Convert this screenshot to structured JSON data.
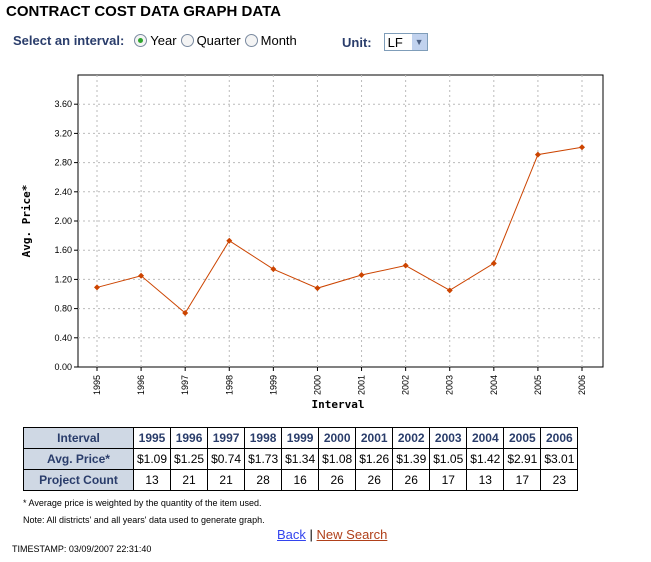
{
  "title": "CONTRACT COST DATA GRAPH DATA",
  "controls": {
    "interval_label": "Select an interval:",
    "options": [
      "Year",
      "Quarter",
      "Month"
    ],
    "selected": "Year",
    "unit_label": "Unit:",
    "unit_value": "LF"
  },
  "chart_data": {
    "type": "line",
    "xlabel": "Interval",
    "ylabel": "Avg. Price*",
    "ylim": [
      0,
      4.0
    ],
    "yticks": [
      "0.00",
      "0.40",
      "0.80",
      "1.20",
      "1.60",
      "2.00",
      "2.40",
      "2.80",
      "3.20",
      "3.60"
    ],
    "categories": [
      "1995",
      "1996",
      "1997",
      "1998",
      "1999",
      "2000",
      "2001",
      "2002",
      "2003",
      "2004",
      "2005",
      "2006"
    ],
    "series": [
      {
        "name": "Avg. Price",
        "values": [
          1.09,
          1.25,
          0.74,
          1.73,
          1.34,
          1.08,
          1.26,
          1.39,
          1.05,
          1.42,
          2.91,
          3.01
        ],
        "color": "#cc4400"
      }
    ],
    "grid": true
  },
  "table": {
    "row_headers": [
      "Interval",
      "Avg. Price*",
      "Project Count"
    ],
    "years": [
      "1995",
      "1996",
      "1997",
      "1998",
      "1999",
      "2000",
      "2001",
      "2002",
      "2003",
      "2004",
      "2005",
      "2006"
    ],
    "prices": [
      "$1.09",
      "$1.25",
      "$0.74",
      "$1.73",
      "$1.34",
      "$1.08",
      "$1.26",
      "$1.39",
      "$1.05",
      "$1.42",
      "$2.91",
      "$3.01"
    ],
    "counts": [
      "13",
      "21",
      "21",
      "28",
      "16",
      "26",
      "26",
      "26",
      "17",
      "13",
      "17",
      "23"
    ]
  },
  "notes": [
    "* Average price is weighted by the quantity of the item used.",
    "Note: All districts' and all years' data used to generate graph."
  ],
  "links": {
    "back": "Back",
    "sep": "|",
    "new_search": "New Search"
  },
  "timestamp": "TIMESTAMP: 03/09/2007 22:31:40"
}
